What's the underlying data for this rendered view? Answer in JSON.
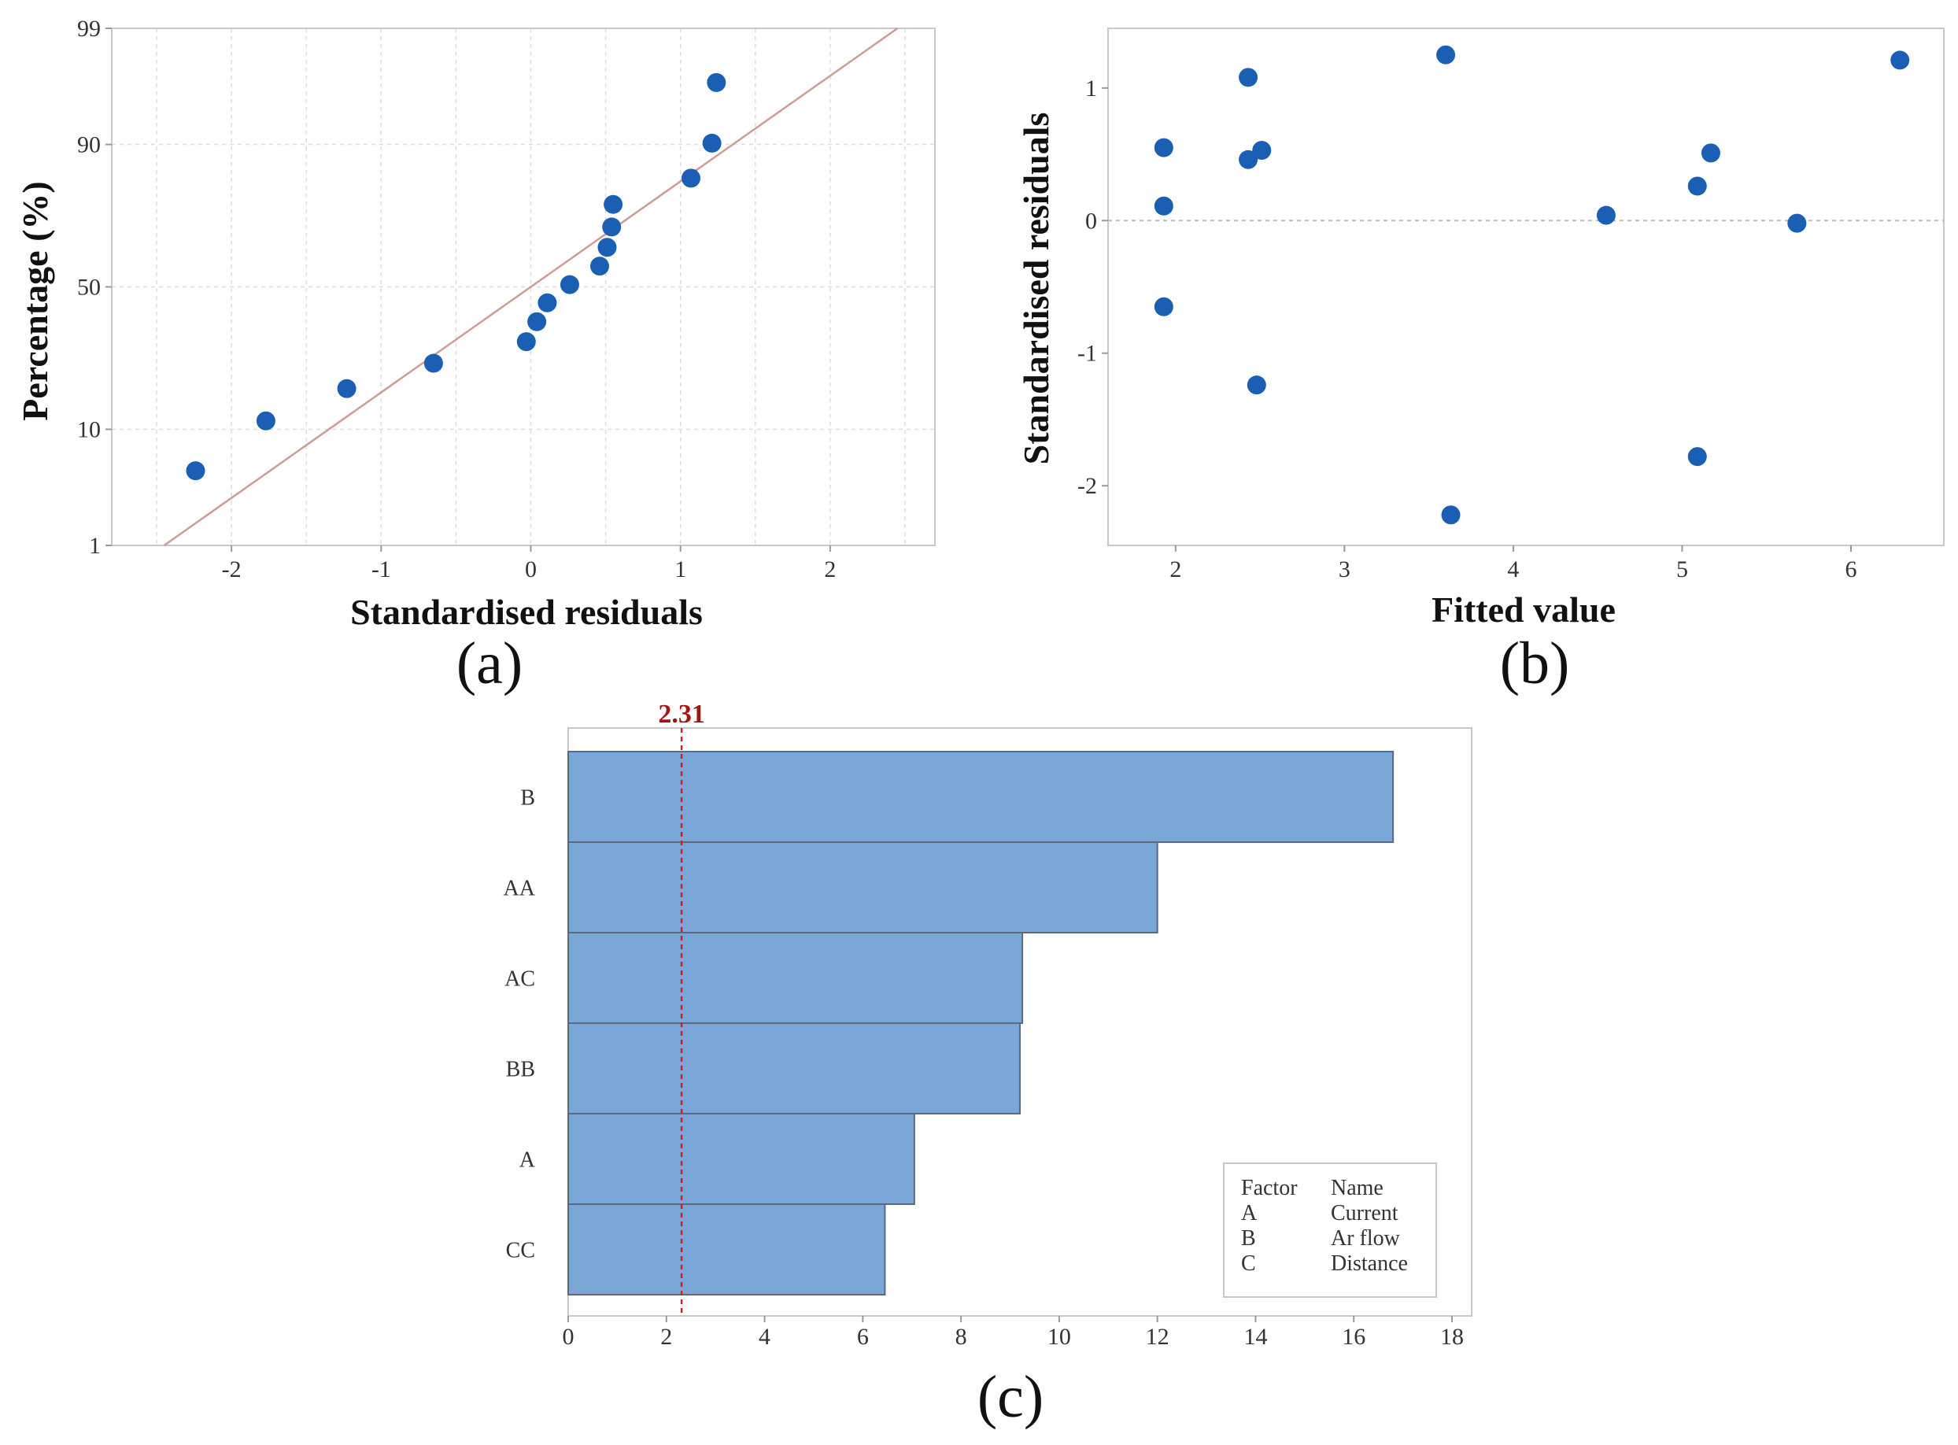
{
  "colors": {
    "point": "#1a5fb4",
    "bar": "#7aa6d8",
    "bar_edge": "#5a6a7c",
    "fit_line": "#d09a96",
    "ref_line": "#cc2222",
    "grid": "#dddddd"
  },
  "chart_data": [
    {
      "id": "a",
      "type": "scatter",
      "subtype": "normal-probability-plot",
      "panel_label": "(a)",
      "xlabel": "Standardised residuals",
      "ylabel": "Percentage (%)",
      "xlim": [
        -2.8,
        2.7
      ],
      "xticks": [
        -2,
        -1,
        0,
        1,
        2
      ],
      "yticks": [
        1,
        10,
        50,
        90,
        99
      ],
      "y_scale": "normal-probability",
      "grid": true,
      "fit_line": {
        "x": [
          -2.45,
          2.45
        ],
        "y": [
          1,
          99
        ]
      },
      "points": [
        {
          "x": -2.24,
          "y": 4.9
        },
        {
          "x": -1.77,
          "y": 11.4
        },
        {
          "x": -1.23,
          "y": 18.0
        },
        {
          "x": -0.65,
          "y": 24.6
        },
        {
          "x": -0.03,
          "y": 31.1
        },
        {
          "x": 0.04,
          "y": 37.7
        },
        {
          "x": 0.11,
          "y": 44.3
        },
        {
          "x": 0.26,
          "y": 50.8
        },
        {
          "x": 0.46,
          "y": 57.4
        },
        {
          "x": 0.51,
          "y": 63.9
        },
        {
          "x": 0.54,
          "y": 70.5
        },
        {
          "x": 0.55,
          "y": 77.1
        },
        {
          "x": 1.07,
          "y": 83.6
        },
        {
          "x": 1.21,
          "y": 90.2
        },
        {
          "x": 1.24,
          "y": 96.7
        }
      ]
    },
    {
      "id": "b",
      "type": "scatter",
      "subtype": "residuals-vs-fits",
      "panel_label": "(b)",
      "xlabel": "Fitted value",
      "ylabel": "Standardised residuals",
      "xlim": [
        1.6,
        6.55
      ],
      "ylim": [
        -2.45,
        1.45
      ],
      "xticks": [
        2,
        3,
        4,
        5,
        6
      ],
      "yticks": [
        -2,
        -1,
        0,
        1
      ],
      "reference_line_y": 0,
      "points": [
        {
          "x": 1.93,
          "y": 0.55
        },
        {
          "x": 1.93,
          "y": 0.11
        },
        {
          "x": 1.93,
          "y": -0.65
        },
        {
          "x": 2.43,
          "y": 1.08
        },
        {
          "x": 2.43,
          "y": 0.46
        },
        {
          "x": 2.51,
          "y": 0.53
        },
        {
          "x": 2.48,
          "y": -1.24
        },
        {
          "x": 3.6,
          "y": 1.25
        },
        {
          "x": 3.63,
          "y": -2.22
        },
        {
          "x": 4.55,
          "y": 0.04
        },
        {
          "x": 5.09,
          "y": 0.26
        },
        {
          "x": 5.17,
          "y": 0.51
        },
        {
          "x": 5.09,
          "y": -1.78
        },
        {
          "x": 5.68,
          "y": -0.02
        },
        {
          "x": 6.29,
          "y": 1.21
        }
      ]
    },
    {
      "id": "c",
      "type": "bar",
      "orientation": "horizontal",
      "subtype": "pareto-of-standardized-effects",
      "panel_label": "(c)",
      "categories": [
        "B",
        "AA",
        "AC",
        "BB",
        "A",
        "CC"
      ],
      "values": [
        16.8,
        12.0,
        9.25,
        9.2,
        7.05,
        6.45
      ],
      "xlim": [
        0,
        18
      ],
      "xticks": [
        0,
        2,
        4,
        6,
        8,
        10,
        12,
        14,
        16,
        18
      ],
      "reference_line": {
        "x": 2.31,
        "label": "2.31"
      },
      "legend": {
        "position": "bottom-right",
        "headers": [
          "Factor",
          "Name"
        ],
        "rows": [
          {
            "factor": "A",
            "name": "Current"
          },
          {
            "factor": "B",
            "name": "Ar flow"
          },
          {
            "factor": "C",
            "name": "Distance"
          }
        ]
      }
    }
  ]
}
